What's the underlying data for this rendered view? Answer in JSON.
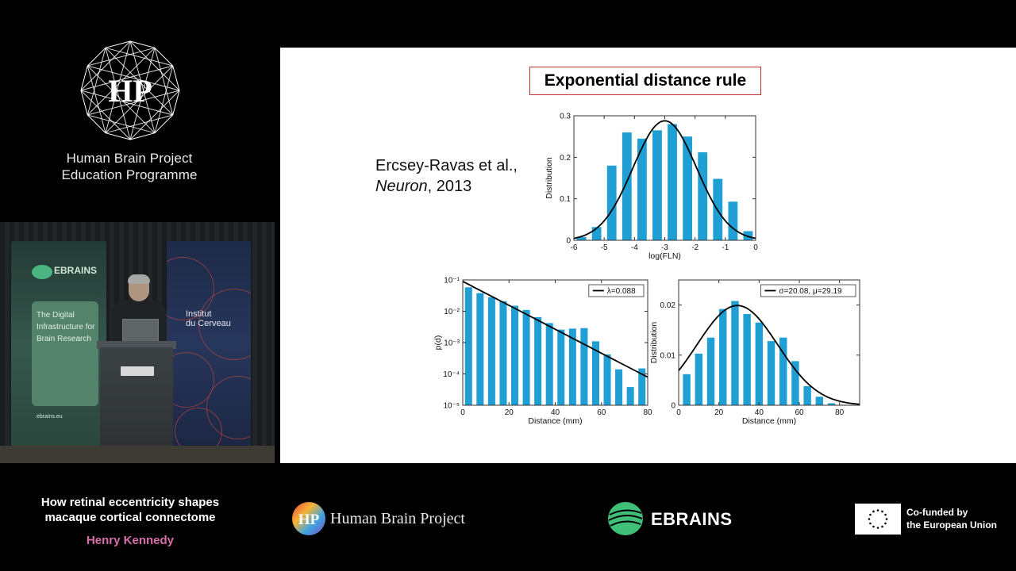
{
  "brand_panel": {
    "logo_text": "HP",
    "line1": "Human Brain Project",
    "line2": "Education Programme",
    "logo_icon": "hbp-polyhedron-logo"
  },
  "video": {
    "banner_ebrains_name": "EBRAINS",
    "banner_ebrains_card": "The Digital Infrastructure for Brain Research",
    "banner_ebrains_url": "ebrains.eu",
    "banner_icm_text_1": "Institut",
    "banner_icm_text_2": "du Cerveau"
  },
  "slide": {
    "title": "Exponential distance rule",
    "citation_authors": "Ercsey-Ravas et al.,",
    "citation_journal": "Neuron",
    "citation_year": ", 2013",
    "bar_color": "#1f9fd3",
    "title_border_color": "#c0302e"
  },
  "chart_data": [
    {
      "type": "bar",
      "xlabel": "log(FLN)",
      "ylabel": "Distribution",
      "xlim": [
        -6,
        0
      ],
      "ylim": [
        0,
        0.3
      ],
      "xticks": [
        "-6",
        "-5",
        "-4",
        "-3",
        "-2",
        "-1",
        "0"
      ],
      "yticks": [
        "0",
        "0.1",
        "0.2",
        "0.3"
      ],
      "x": [
        -5.75,
        -5.25,
        -4.75,
        -4.25,
        -3.75,
        -3.25,
        -2.75,
        -2.25,
        -1.75,
        -1.25,
        -0.75,
        -0.25
      ],
      "values": [
        0.008,
        0.032,
        0.18,
        0.26,
        0.245,
        0.265,
        0.28,
        0.25,
        0.212,
        0.148,
        0.093,
        0.022
      ],
      "fit": {
        "kind": "gaussian",
        "mu": -3.0,
        "sigma": 1.05,
        "peak": 0.288
      }
    },
    {
      "type": "bar",
      "xlabel": "Distance (mm)",
      "ylabel": "p(d)",
      "yscale": "log",
      "xlim": [
        0,
        80
      ],
      "ylim": [
        1e-05,
        0.1
      ],
      "xticks": [
        "0",
        "20",
        "40",
        "60",
        "80"
      ],
      "yticks": [
        "10⁻⁵",
        "10⁻⁴",
        "10⁻³",
        "10⁻²",
        "10⁻¹"
      ],
      "legend": "λ=0.088",
      "legend_position": "top-right",
      "x": [
        2.5,
        7.5,
        12.5,
        17.5,
        22.5,
        27.5,
        32.5,
        37.5,
        42.5,
        47.5,
        52.5,
        57.5,
        62.5,
        67.5,
        72.5,
        77.5
      ],
      "values": [
        0.058,
        0.038,
        0.028,
        0.021,
        0.015,
        0.011,
        0.0065,
        0.0042,
        0.0026,
        0.0028,
        0.0029,
        0.0011,
        0.00042,
        0.00014,
        3.8e-05,
        0.00015
      ],
      "fit": {
        "kind": "exponential",
        "lambda": 0.088,
        "y0": 0.09
      }
    },
    {
      "type": "bar",
      "xlabel": "Distance (mm)",
      "ylabel": "Distribution",
      "xlim": [
        0,
        90
      ],
      "ylim": [
        0,
        0.025
      ],
      "xticks": [
        "0",
        "20",
        "40",
        "60",
        "80"
      ],
      "yticks": [
        "0",
        "0.01",
        "0.02"
      ],
      "legend": "σ=20.08, μ=29.19",
      "legend_position": "top-right",
      "x": [
        4,
        10,
        16,
        22,
        28,
        34,
        40,
        46,
        52,
        58,
        64,
        70,
        76,
        82
      ],
      "values": [
        0.0062,
        0.0103,
        0.0135,
        0.0192,
        0.0208,
        0.0182,
        0.0165,
        0.0128,
        0.0135,
        0.0088,
        0.0038,
        0.0017,
        0.0004,
        0.0001
      ],
      "fit": {
        "kind": "gaussian",
        "mu": 29.19,
        "sigma": 20.08,
        "peak": 0.0199
      }
    }
  ],
  "bottom_bar": {
    "talk_title_line1": "How retinal eccentricity shapes",
    "talk_title_line2": "macaque cortical connectome",
    "speaker": "Henry Kennedy",
    "speaker_color": "#d76fa8",
    "hbp_wordmark": "Human Brain Project",
    "ebrains_wordmark": "EBRAINS",
    "eu_line1": "Co-funded by",
    "eu_line2": "the European Union",
    "ebrains_color": "#3fbf7a",
    "eu_flag_icon": "eu-flag-icon"
  }
}
